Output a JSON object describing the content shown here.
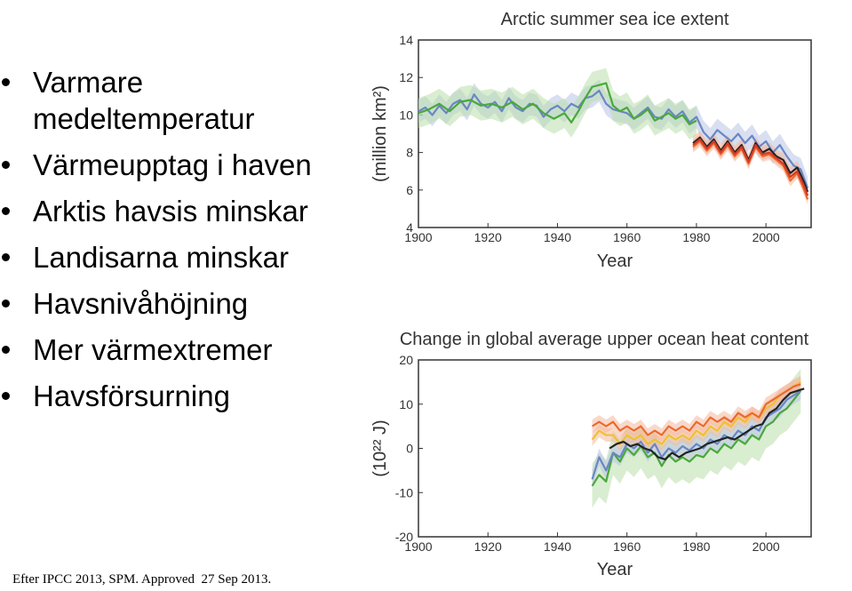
{
  "bullets": [
    "Varmare medeltemperatur",
    "Värmeupptag i  haven",
    "Arktis havsis  minskar",
    "Landisarna minskar",
    "Havsnivåhöjning",
    "Mer värmextremer",
    "Havsförsurning"
  ],
  "source": "Efter IPCC 2013, SPM. Approved  27 Sep 2013.",
  "colors": {
    "blue": "#6b86c4",
    "green": "#4aa83c",
    "black": "#222222",
    "orange": "#ec6a2c",
    "red": "#d43a28",
    "yellow": "#f0c030",
    "blue_band": "#b8c4e6",
    "green_band": "#b9dfa9",
    "orange_band": "#f4b89c"
  },
  "chart_data": [
    {
      "type": "line",
      "title": "Arctic summer sea ice extent",
      "xlabel": "Year",
      "ylabel": "(million km²)",
      "xlim": [
        1900,
        2013
      ],
      "ylim": [
        4,
        14
      ],
      "xticks": [
        1900,
        1920,
        1940,
        1960,
        1980,
        2000
      ],
      "yticks": [
        4,
        6,
        8,
        10,
        12,
        14
      ],
      "grid": false,
      "series": [
        {
          "color": "blue",
          "band_color": "blue_band",
          "band_width": 0.6,
          "x": [
            1900,
            1902,
            1904,
            1906,
            1908,
            1910,
            1912,
            1914,
            1916,
            1918,
            1920,
            1922,
            1924,
            1926,
            1928,
            1930,
            1932,
            1934,
            1936,
            1938,
            1940,
            1942,
            1944,
            1946,
            1948,
            1950,
            1952,
            1954,
            1956,
            1958,
            1960,
            1962,
            1964,
            1966,
            1968,
            1970,
            1972,
            1974,
            1976,
            1978,
            1980,
            1982,
            1984,
            1986,
            1988,
            1990,
            1992,
            1994,
            1996,
            1998,
            2000,
            2002,
            2004,
            2006,
            2008,
            2010,
            2012
          ],
          "y": [
            10.2,
            10.4,
            10.0,
            10.5,
            10.1,
            10.6,
            10.8,
            10.3,
            11.1,
            10.6,
            10.4,
            10.7,
            10.2,
            10.9,
            10.4,
            10.2,
            10.6,
            10.5,
            9.9,
            10.3,
            10.5,
            10.2,
            10.6,
            10.4,
            10.9,
            11.0,
            11.3,
            10.6,
            10.3,
            10.2,
            10.1,
            9.8,
            10.1,
            10.4,
            9.9,
            9.8,
            10.3,
            9.9,
            10.2,
            9.6,
            9.9,
            9.1,
            8.7,
            9.2,
            8.9,
            8.6,
            9.0,
            8.5,
            8.9,
            8.3,
            8.6,
            8.0,
            8.4,
            7.8,
            7.3,
            7.1,
            6.1
          ]
        },
        {
          "color": "green",
          "band_color": "green_band",
          "band_width": 0.8,
          "x": [
            1900,
            1903,
            1906,
            1909,
            1912,
            1915,
            1918,
            1921,
            1924,
            1927,
            1930,
            1933,
            1936,
            1939,
            1942,
            1944,
            1946,
            1948,
            1950,
            1952,
            1954,
            1956,
            1958,
            1960,
            1962,
            1964,
            1966,
            1968,
            1970,
            1972,
            1974,
            1976,
            1978,
            1980
          ],
          "y": [
            10.1,
            10.3,
            10.6,
            10.2,
            10.7,
            10.8,
            10.5,
            10.6,
            10.4,
            10.7,
            10.3,
            10.6,
            10.1,
            9.8,
            10.1,
            9.6,
            10.2,
            10.9,
            11.5,
            11.6,
            11.7,
            10.5,
            10.2,
            10.4,
            9.8,
            10.0,
            10.3,
            9.7,
            9.9,
            10.1,
            9.8,
            10.0,
            9.5,
            9.7
          ]
        },
        {
          "color": "black",
          "band_color": "orange_band",
          "band_width": 0.35,
          "x": [
            1979,
            1981,
            1983,
            1985,
            1987,
            1989,
            1991,
            1993,
            1995,
            1997,
            1999,
            2001,
            2003,
            2005,
            2007,
            2009,
            2011,
            2012
          ],
          "y": [
            8.5,
            8.8,
            8.3,
            8.7,
            8.1,
            8.6,
            8.0,
            8.4,
            7.6,
            8.5,
            8.0,
            8.2,
            7.8,
            7.6,
            6.9,
            7.2,
            6.4,
            5.9
          ]
        },
        {
          "color": "orange",
          "band_color": "orange_band",
          "band_width": 0.3,
          "x": [
            1979,
            1981,
            1983,
            1985,
            1987,
            1989,
            1991,
            1993,
            1995,
            1997,
            1999,
            2001,
            2003,
            2005,
            2007,
            2009,
            2011,
            2012
          ],
          "y": [
            8.3,
            8.6,
            8.1,
            8.5,
            7.9,
            8.4,
            7.8,
            8.2,
            7.4,
            8.3,
            7.8,
            7.9,
            7.6,
            7.3,
            6.5,
            6.9,
            6.0,
            5.5
          ]
        },
        {
          "color": "red",
          "band_color": "orange_band",
          "band_width": 0.3,
          "x": [
            1979,
            1981,
            1983,
            1985,
            1987,
            1989,
            1991,
            1993,
            1995,
            1997,
            1999,
            2001,
            2003,
            2005,
            2007,
            2009,
            2011,
            2012
          ],
          "y": [
            8.4,
            8.7,
            8.2,
            8.6,
            8.0,
            8.5,
            7.9,
            8.3,
            7.5,
            8.4,
            7.9,
            8.0,
            7.7,
            7.4,
            6.7,
            7.0,
            6.2,
            5.7
          ]
        }
      ]
    },
    {
      "type": "line",
      "title": "Change in global average upper ocean heat content",
      "xlabel": "Year",
      "ylabel": "(10²² J)",
      "xlim": [
        1900,
        2013
      ],
      "ylim": [
        -20,
        20
      ],
      "xticks": [
        1900,
        1920,
        1940,
        1960,
        1980,
        2000
      ],
      "yticks": [
        -20,
        -10,
        0,
        10,
        20
      ],
      "grid": false,
      "series": [
        {
          "color": "green",
          "band_color": "green_band",
          "band_width": 5,
          "x": [
            1950,
            1952,
            1954,
            1956,
            1958,
            1960,
            1962,
            1964,
            1966,
            1968,
            1970,
            1972,
            1974,
            1976,
            1978,
            1980,
            1982,
            1984,
            1986,
            1988,
            1990,
            1992,
            1994,
            1996,
            1998,
            2000,
            2002,
            2004,
            2006,
            2008,
            2010
          ],
          "y": [
            -8.5,
            -6,
            -7.5,
            -1,
            -3,
            0,
            -1.5,
            0.5,
            -2,
            -1,
            -4,
            -1.5,
            -3,
            -2,
            -3,
            -1.5,
            -2,
            0,
            -1,
            1,
            0,
            2,
            1,
            3,
            2,
            5,
            6,
            8,
            9,
            11,
            13
          ]
        },
        {
          "color": "blue",
          "band_color": "blue_band",
          "band_width": 2,
          "x": [
            1950,
            1952,
            1954,
            1956,
            1958,
            1960,
            1962,
            1964,
            1966,
            1968,
            1970,
            1972,
            1974,
            1976,
            1978,
            1980,
            1982,
            1984,
            1986,
            1988,
            1990,
            1992,
            1994,
            1996,
            1998,
            2000,
            2002,
            2004,
            2006,
            2008,
            2010
          ],
          "y": [
            -7,
            -2,
            -5,
            -1,
            -2,
            1,
            0,
            1.5,
            -1,
            1,
            -2,
            0,
            -1,
            0.5,
            -0.5,
            1,
            0,
            2,
            1,
            3,
            2,
            4,
            3,
            5,
            4,
            7,
            8,
            9,
            11,
            12,
            13
          ]
        },
        {
          "color": "yellow",
          "band_color": "orange_band",
          "band_width": 1.5,
          "x": [
            1950,
            1952,
            1954,
            1956,
            1958,
            1960,
            1962,
            1964,
            1966,
            1968,
            1970,
            1972,
            1974,
            1976,
            1978,
            1980,
            1982,
            1984,
            1986,
            1988,
            1990,
            1992,
            1994,
            1996,
            1998,
            2000,
            2002,
            2004,
            2006,
            2008,
            2010
          ],
          "y": [
            2,
            4,
            3,
            3,
            1,
            3,
            2,
            3,
            1,
            2,
            1,
            3,
            2,
            3,
            2,
            4,
            3,
            5,
            4,
            6,
            5,
            7,
            6,
            8,
            7,
            9,
            10,
            12,
            13,
            14,
            15
          ]
        },
        {
          "color": "orange",
          "band_color": "orange_band",
          "band_width": 1.5,
          "x": [
            1950,
            1952,
            1954,
            1956,
            1958,
            1960,
            1962,
            1964,
            1966,
            1968,
            1970,
            1972,
            1974,
            1976,
            1978,
            1980,
            1982,
            1984,
            1986,
            1988,
            1990,
            1992,
            1994,
            1996,
            1998,
            2000,
            2002,
            2004,
            2006,
            2008,
            2010
          ],
          "y": [
            5,
            6,
            5,
            6,
            4,
            5,
            4,
            5,
            3,
            4,
            3,
            5,
            4,
            5,
            4,
            6,
            5,
            7,
            6,
            7,
            6,
            8,
            7,
            8,
            7,
            10,
            11,
            12,
            13,
            14,
            14.5
          ]
        },
        {
          "color": "black",
          "band_color": "orange_band",
          "band_width": 0,
          "x": [
            1955,
            1957,
            1959,
            1961,
            1963,
            1965,
            1967,
            1969,
            1971,
            1973,
            1975,
            1977,
            1979,
            1981,
            1983,
            1985,
            1987,
            1989,
            1991,
            1993,
            1995,
            1997,
            1999,
            2001,
            2003,
            2005,
            2007,
            2009,
            2011
          ],
          "y": [
            0,
            1,
            1.5,
            0.5,
            1,
            0,
            -0.5,
            -2,
            -2.5,
            -1,
            -2,
            -1,
            -0.5,
            0,
            1,
            1.5,
            2,
            2.5,
            2,
            3,
            4,
            5,
            5.5,
            8,
            9,
            11,
            12.5,
            13,
            13.5
          ]
        }
      ]
    }
  ]
}
